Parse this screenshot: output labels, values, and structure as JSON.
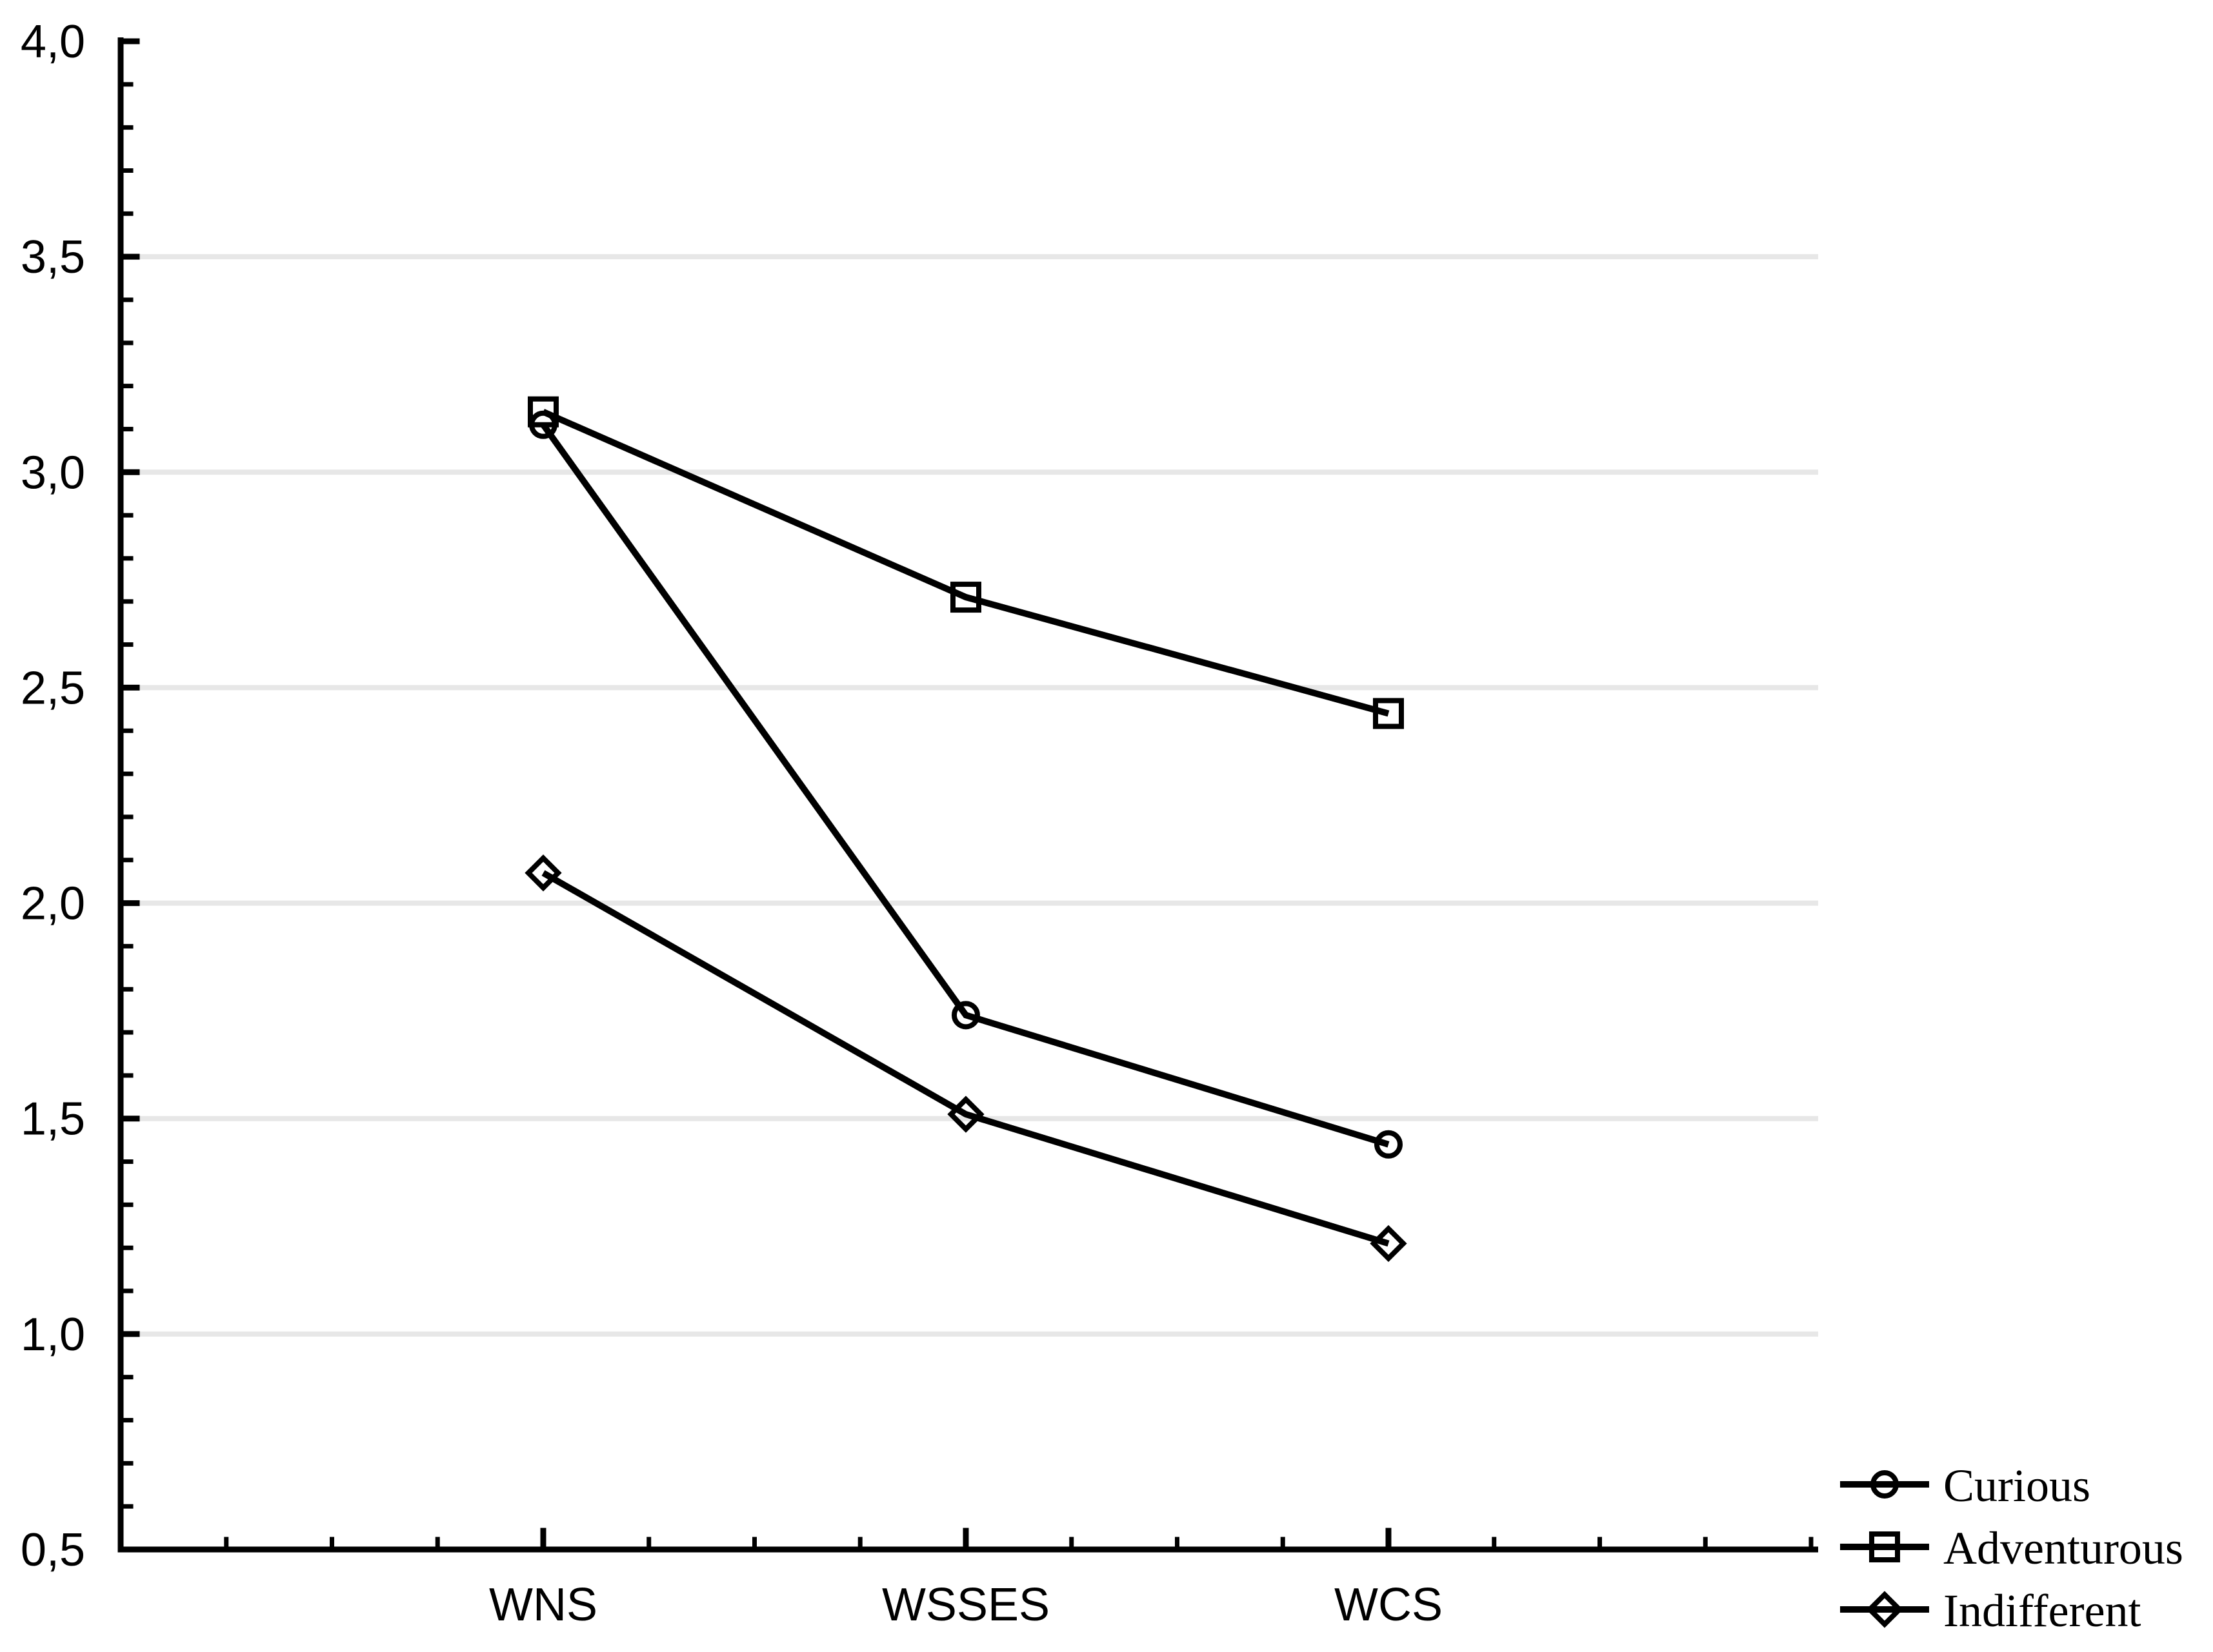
{
  "chart_data": {
    "type": "line",
    "title": "",
    "categories": [
      "WNS",
      "WSSES",
      "WCS"
    ],
    "series": [
      {
        "name": "Curious",
        "marker": "circle",
        "values": [
          3.11,
          1.74,
          1.44
        ]
      },
      {
        "name": "Adventurous",
        "marker": "square",
        "values": [
          3.14,
          2.71,
          2.44
        ]
      },
      {
        "name": "Indifferent",
        "marker": "diamond",
        "values": [
          2.07,
          1.51,
          1.21
        ]
      }
    ],
    "y_axis": {
      "min": 0.5,
      "max": 4.0,
      "major_step": 0.5,
      "minor_step": 0.1,
      "major_tick_labels": [
        "0,5",
        "1,0",
        "1,5",
        "2,0",
        "2,5",
        "3,0",
        "3,5",
        "4,0"
      ],
      "decimal_separator": ","
    },
    "x_axis": {
      "minor_ticks_per_interval": 4
    },
    "grid": {
      "horizontal_major": true,
      "gridline_color": "#e7e7e7"
    },
    "legend": {
      "position": "bottom-right"
    },
    "colors": {
      "series_line": "#000000",
      "text": "#000000",
      "background": "#ffffff"
    }
  }
}
